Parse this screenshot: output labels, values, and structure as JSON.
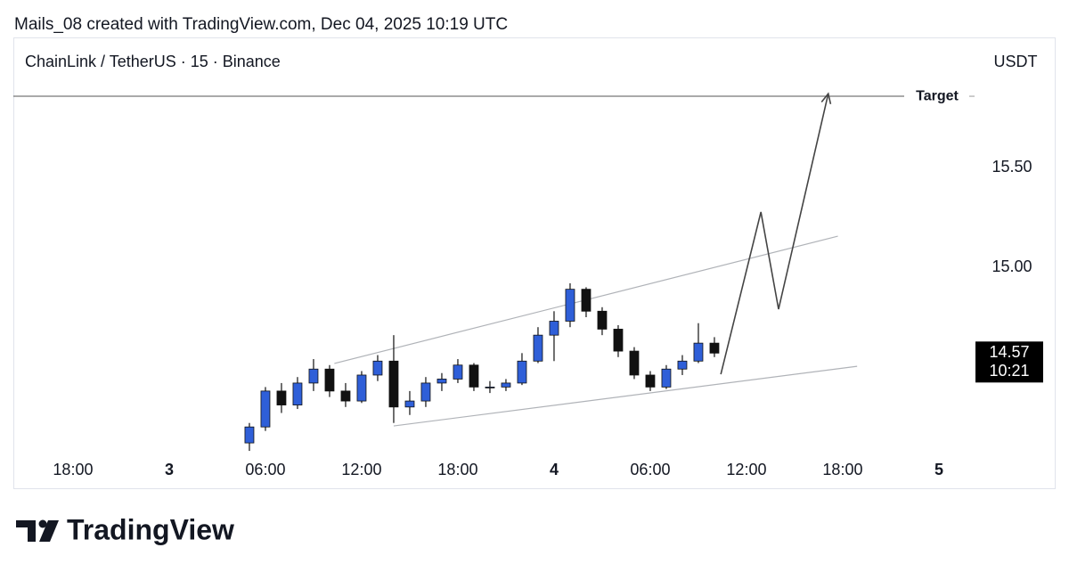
{
  "chart_data": {
    "type": "candlestick",
    "attribution": "Mails_08 created with TradingView.com, Dec 04, 2025 10:19 UTC",
    "title": "ChainLink / TetherUS · 15 · Binance",
    "currency": "USDT",
    "brand": "TradingView",
    "x": [
      5,
      6,
      7,
      8,
      9,
      10,
      11,
      12,
      13,
      14,
      15,
      16,
      17,
      18,
      19,
      20,
      21,
      22,
      23,
      24,
      25,
      26,
      27,
      28,
      29,
      30,
      31,
      32,
      33,
      34
    ],
    "open": [
      14.12,
      14.2,
      14.38,
      14.31,
      14.42,
      14.49,
      14.38,
      14.33,
      14.46,
      14.53,
      14.3,
      14.33,
      14.42,
      14.44,
      14.51,
      14.4,
      14.4,
      14.42,
      14.53,
      14.66,
      14.73,
      14.89,
      14.78,
      14.69,
      14.58,
      14.46,
      14.4,
      14.49,
      14.53,
      14.62
    ],
    "high": [
      14.22,
      14.4,
      14.42,
      14.45,
      14.54,
      14.51,
      14.42,
      14.48,
      14.56,
      14.66,
      14.38,
      14.45,
      14.47,
      14.54,
      14.52,
      14.43,
      14.44,
      14.57,
      14.7,
      14.78,
      14.92,
      14.9,
      14.8,
      14.71,
      14.6,
      14.48,
      14.51,
      14.56,
      14.72,
      14.65
    ],
    "low": [
      14.08,
      14.18,
      14.27,
      14.29,
      14.38,
      14.35,
      14.3,
      14.32,
      14.43,
      14.22,
      14.26,
      14.3,
      14.38,
      14.42,
      14.38,
      14.37,
      14.38,
      14.41,
      14.52,
      14.53,
      14.7,
      14.75,
      14.66,
      14.55,
      14.44,
      14.38,
      14.39,
      14.46,
      14.52,
      14.55
    ],
    "close": [
      14.2,
      14.38,
      14.31,
      14.42,
      14.49,
      14.38,
      14.33,
      14.46,
      14.53,
      14.3,
      14.33,
      14.42,
      14.44,
      14.51,
      14.4,
      14.4,
      14.42,
      14.53,
      14.66,
      14.73,
      14.89,
      14.78,
      14.69,
      14.58,
      14.46,
      14.4,
      14.49,
      14.53,
      14.62,
      14.57
    ],
    "up_color": "#2f5fd8",
    "down_color": "#111111",
    "xlim": [
      -9.72,
      50.28
    ],
    "ylim": [
      14.0625,
      16.1518
    ],
    "xticks": [
      {
        "value": -6,
        "label": "18:00"
      },
      {
        "value": 0,
        "label": "3"
      },
      {
        "value": 6,
        "label": "06:00"
      },
      {
        "value": 12,
        "label": "12:00"
      },
      {
        "value": 18,
        "label": "18:00"
      },
      {
        "value": 24,
        "label": "4"
      },
      {
        "value": 30,
        "label": "06:00"
      },
      {
        "value": 36,
        "label": "12:00"
      },
      {
        "value": 42,
        "label": "18:00"
      },
      {
        "value": 48,
        "label": "5"
      }
    ],
    "yticks": [
      {
        "value": 15.5,
        "label": "15.50"
      },
      {
        "value": 15,
        "label": "15.00"
      }
    ],
    "target": {
      "label": "Target",
      "value": 15.857
    },
    "last_price": {
      "value": 14.57,
      "time": "10:21"
    },
    "channel_upper": {
      "x": [
        10.3,
        41.7
      ],
      "y": [
        14.518,
        15.156
      ]
    },
    "channel_lower": {
      "x": [
        14.0,
        42.9
      ],
      "y": [
        14.205,
        14.504
      ]
    },
    "projection": {
      "x": [
        34.4,
        36.9,
        38.0,
        41.1
      ],
      "y": [
        14.464,
        15.277,
        14.79,
        15.87
      ]
    }
  }
}
